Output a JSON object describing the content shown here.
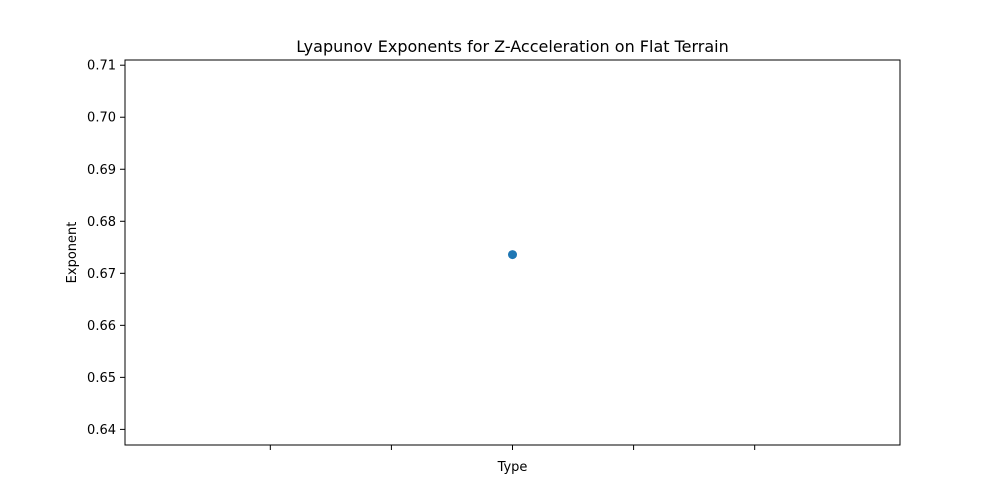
{
  "chart_data": {
    "type": "scatter",
    "title": "Lyapunov Exponents for Z-Acceleration on Flat Terrain",
    "xlabel": "Type",
    "ylabel": "Exponent",
    "ylim": [
      0.637,
      0.711
    ],
    "xlim": [
      -0.8,
      0.8
    ],
    "y_ticks": [
      "0.64",
      "0.65",
      "0.66",
      "0.67",
      "0.68",
      "0.69",
      "0.70",
      "0.71"
    ],
    "x_tick_count": 5,
    "x_tick_labels": [
      "",
      "",
      "",
      "",
      ""
    ],
    "points": [
      {
        "x": 0,
        "y": 0.6736
      }
    ],
    "marker_color": "#1f77b4",
    "grid": false,
    "legend": "none"
  }
}
